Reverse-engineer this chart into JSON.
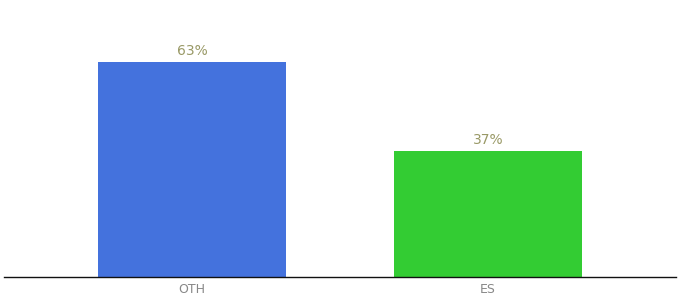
{
  "categories": [
    "OTH",
    "ES"
  ],
  "values": [
    63,
    37
  ],
  "bar_colors": [
    "#4472DD",
    "#33CC33"
  ],
  "label_texts": [
    "63%",
    "37%"
  ],
  "label_color": "#999966",
  "ylim": [
    0,
    80
  ],
  "background_color": "#ffffff",
  "label_fontsize": 10,
  "tick_fontsize": 9,
  "bar_width": 0.28,
  "x_positions": [
    0.28,
    0.72
  ],
  "xlim": [
    0.0,
    1.0
  ]
}
